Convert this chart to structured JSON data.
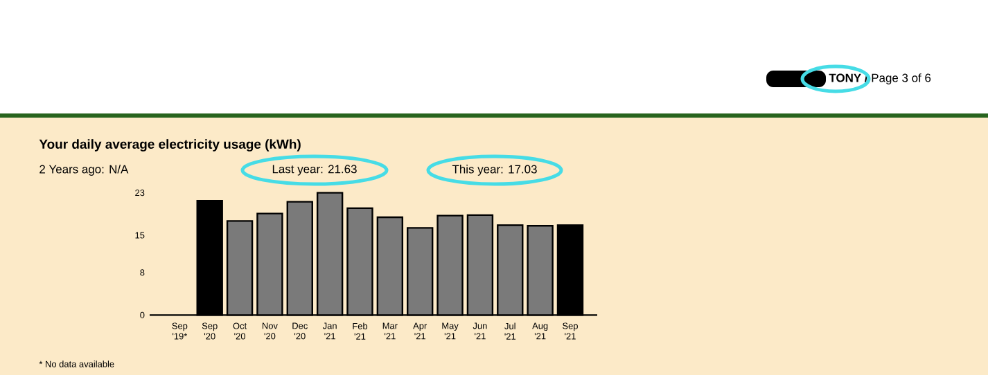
{
  "chart_data": {
    "type": "bar",
    "title": "Your daily average electricity usage (kWh)",
    "subtitle": "2 Years ago: N/A",
    "annotations": [
      "Last year: 21.63",
      "This year: 17.03",
      "* No data available",
      "**TONY /** Page 3 of 6"
    ],
    "categories": [
      "Sep '19*",
      "Sep '20",
      "Oct '20",
      "Nov '20",
      "Dec '20",
      "Jan '21",
      "Feb '21",
      "Mar '21",
      "Apr '21",
      "May '21",
      "Jun '21",
      "Jul '21",
      "Aug '21",
      "Sep '21"
    ],
    "values": [
      null,
      21.5,
      17.7,
      19.1,
      21.3,
      23.0,
      20.1,
      18.4,
      16.4,
      18.7,
      18.8,
      16.9,
      16.8,
      16.9
    ],
    "colors": [
      "#7a7a7a",
      "#000000",
      "#7a7a7a",
      "#7a7a7a",
      "#7a7a7a",
      "#7a7a7a",
      "#7a7a7a",
      "#7a7a7a",
      "#7a7a7a",
      "#7a7a7a",
      "#7a7a7a",
      "#7a7a7a",
      "#7a7a7a",
      "#000000"
    ],
    "ylim": [
      0,
      23
    ],
    "yticks": [
      0,
      8,
      15,
      23
    ]
  }
}
